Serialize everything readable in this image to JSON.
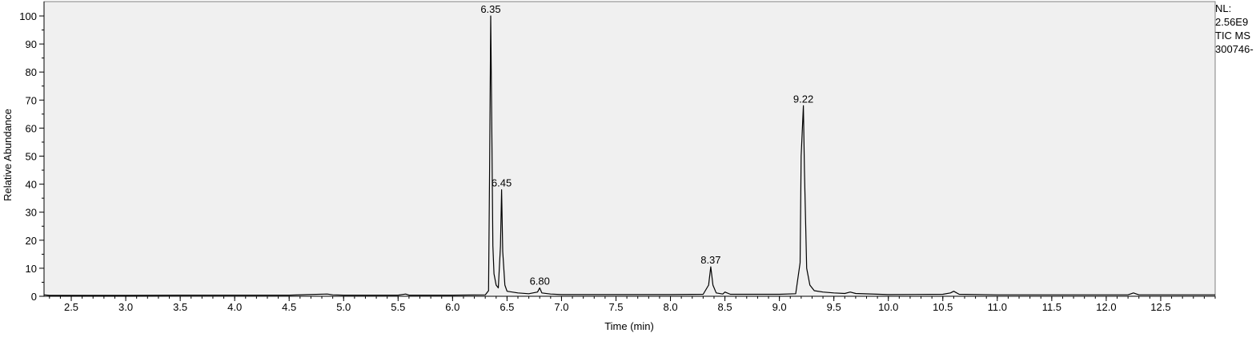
{
  "chart_data": {
    "type": "line",
    "title": "",
    "xlabel": "Time (min)",
    "ylabel": "Relative Abundance",
    "xlim": [
      2.25,
      13.0
    ],
    "ylim": [
      0,
      100
    ],
    "x_ticks": [
      "2.5",
      "3.0",
      "3.5",
      "4.0",
      "4.5",
      "5.0",
      "5.5",
      "6.0",
      "6.5",
      "7.0",
      "7.5",
      "8.0",
      "8.5",
      "9.0",
      "9.5",
      "10.0",
      "10.5",
      "11.0",
      "11.5",
      "12.0",
      "12.5"
    ],
    "y_ticks": [
      "0",
      "10",
      "20",
      "30",
      "40",
      "50",
      "60",
      "70",
      "80",
      "90",
      "100"
    ],
    "grid": false,
    "series": [
      {
        "x": [
          2.25,
          2.3,
          2.5,
          3.0,
          3.5,
          4.0,
          4.5,
          4.85,
          4.9,
          5.0,
          5.5,
          5.57,
          5.6,
          6.0,
          6.3,
          6.33,
          6.34,
          6.35,
          6.36,
          6.37,
          6.38,
          6.4,
          6.42,
          6.44,
          6.45,
          6.46,
          6.48,
          6.5,
          6.6,
          6.7,
          6.78,
          6.8,
          6.82,
          6.9,
          7.0,
          7.5,
          8.0,
          8.3,
          8.35,
          8.37,
          8.39,
          8.42,
          8.48,
          8.5,
          8.55,
          8.7,
          9.0,
          9.15,
          9.19,
          9.2,
          9.22,
          9.23,
          9.25,
          9.28,
          9.32,
          9.4,
          9.5,
          9.6,
          9.65,
          9.7,
          10.0,
          10.5,
          10.57,
          10.6,
          10.65,
          11.0,
          12.0,
          12.2,
          12.25,
          12.3,
          13.0
        ],
        "y": [
          0.5,
          0.3,
          0.3,
          0.3,
          0.4,
          0.4,
          0.4,
          0.8,
          0.5,
          0.4,
          0.4,
          0.8,
          0.4,
          0.4,
          0.5,
          2,
          45,
          100,
          62,
          18,
          8,
          4,
          3,
          18,
          38,
          16,
          4,
          1.8,
          1.2,
          0.9,
          1.5,
          3,
          1.2,
          0.8,
          0.6,
          0.6,
          0.6,
          0.7,
          4,
          10.5,
          4,
          1.2,
          0.8,
          1.5,
          0.7,
          0.7,
          0.7,
          0.9,
          12,
          50,
          68,
          45,
          10,
          4,
          2,
          1.5,
          1.2,
          1,
          1.5,
          1,
          0.6,
          0.7,
          1.2,
          1.8,
          0.7,
          0.5,
          0.5,
          0.5,
          1.2,
          0.5,
          0.5
        ]
      }
    ],
    "annotations": [
      {
        "x": 6.35,
        "y": 100,
        "text": "6.35"
      },
      {
        "x": 6.45,
        "y": 38,
        "text": "6.45"
      },
      {
        "x": 6.8,
        "y": 3,
        "text": "6.80"
      },
      {
        "x": 8.37,
        "y": 10.5,
        "text": "8.37"
      },
      {
        "x": 9.22,
        "y": 68,
        "text": "9.22"
      }
    ]
  },
  "info": {
    "nl_label": "NL:",
    "nl_value": "2.56E9",
    "scan_filter": "TIC  MS",
    "file_name": "300746-"
  },
  "colors": {
    "plot_background": "#f0f0f0",
    "trace": "#000000"
  }
}
